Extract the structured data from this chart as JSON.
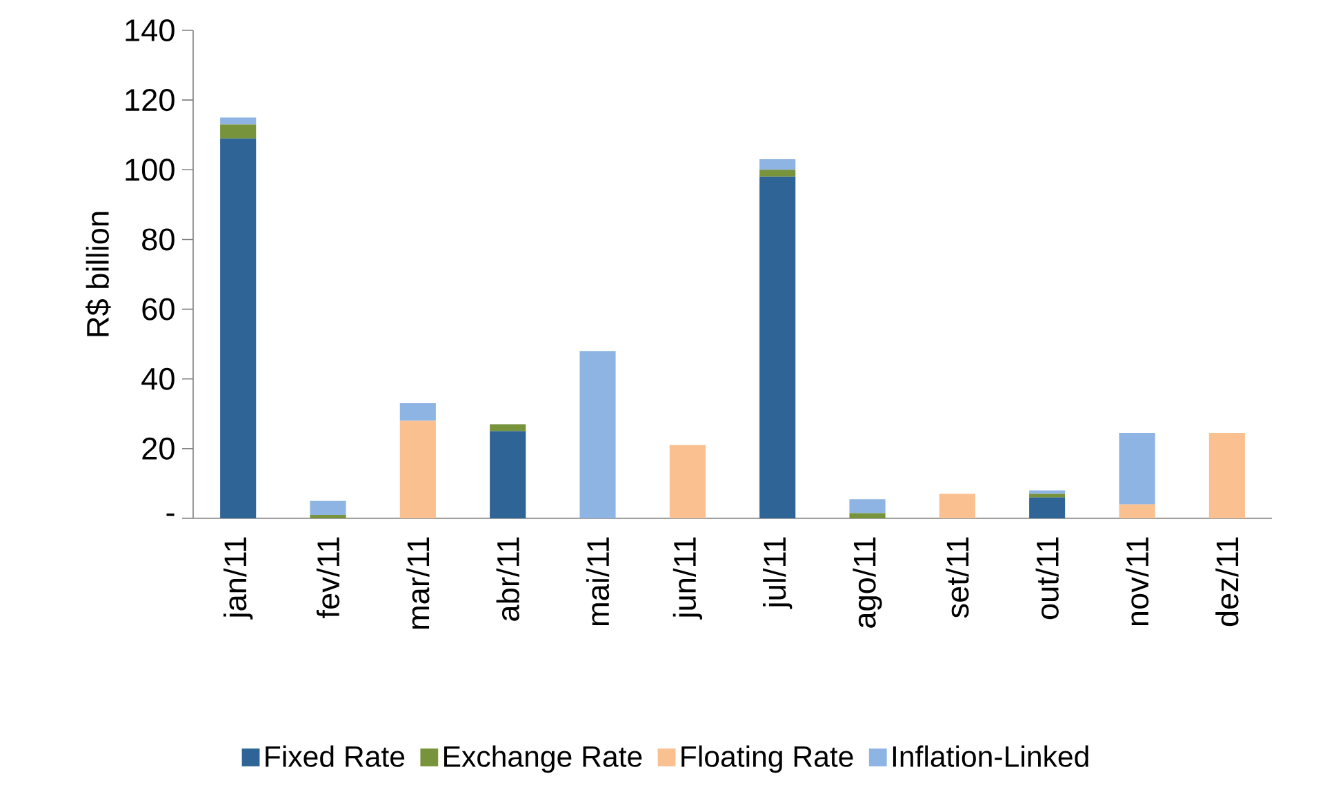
{
  "chart_data": {
    "type": "bar",
    "stacked": true,
    "ylabel": "R$ billion",
    "categories": [
      "jan/11",
      "fev/11",
      "mar/11",
      "abr/11",
      "mai/11",
      "jun/11",
      "jul/11",
      "ago/11",
      "set/11",
      "out/11",
      "nov/11",
      "dez/11"
    ],
    "series": [
      {
        "name": "Fixed Rate",
        "color": "#2e6496",
        "values": [
          109,
          0,
          0,
          25,
          0,
          0,
          98,
          0,
          0,
          6,
          0,
          0
        ]
      },
      {
        "name": "Exchange Rate",
        "color": "#77933c",
        "values": [
          4,
          1,
          0,
          2,
          0,
          0,
          2,
          1.5,
          0,
          1,
          0,
          0
        ]
      },
      {
        "name": "Floating Rate",
        "color": "#fac090",
        "values": [
          0,
          0,
          28,
          0,
          0,
          21,
          0,
          0,
          7,
          0,
          4,
          24.5
        ]
      },
      {
        "name": "Inflation-Linked",
        "color": "#8eb4e3",
        "values": [
          2,
          4,
          5,
          0,
          48,
          0,
          3,
          4,
          0,
          1,
          20.5,
          0
        ]
      }
    ],
    "ylim": [
      0,
      140
    ],
    "yticks": [
      {
        "value": 0,
        "label": "-"
      },
      20,
      40,
      60,
      80,
      100,
      120,
      140
    ],
    "grid": false,
    "legend": "bottom"
  }
}
